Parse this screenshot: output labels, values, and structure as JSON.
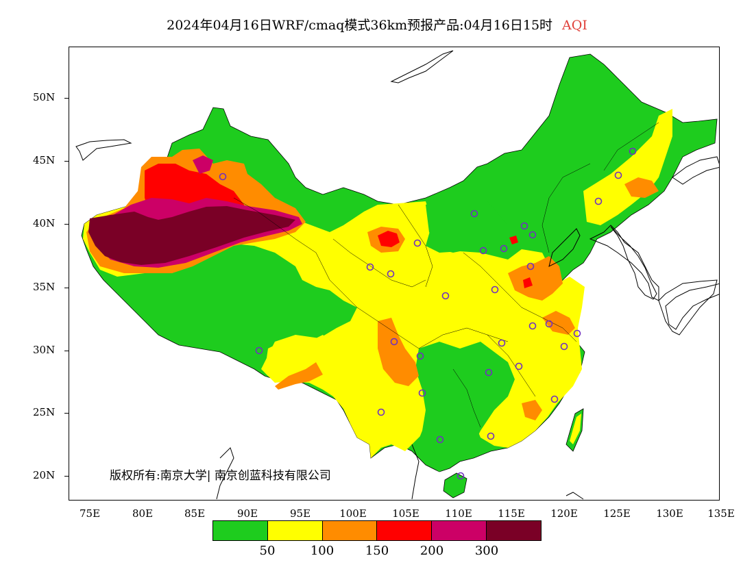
{
  "title": {
    "main": "2024年04月16日WRF/cmaq模式36km预报产品:04月16日15时",
    "variable": "AQI"
  },
  "axes": {
    "lat_labels": [
      "50N",
      "45N",
      "40N",
      "35N",
      "30N",
      "25N",
      "20N"
    ],
    "lon_labels": [
      "75E",
      "80E",
      "85E",
      "90E",
      "95E",
      "100E",
      "105E",
      "110E",
      "115E",
      "120E",
      "125E",
      "130E",
      "135E"
    ]
  },
  "copyright": "版权所有:南京大学| 南京创蓝科技有限公司",
  "legend": {
    "colors": [
      "#1ecc1e",
      "#ffff00",
      "#ff8c00",
      "#ff0000",
      "#cc0066",
      "#7a0026"
    ],
    "labels": [
      "50",
      "100",
      "150",
      "200",
      "300"
    ]
  },
  "colors": {
    "good": "#1ecc1e",
    "moderate": "#ffff00",
    "usg": "#ff8c00",
    "unhealthy": "#ff0000",
    "very_unhealthy": "#cc0066",
    "hazardous": "#7a0026",
    "station_marker": "#7030c0"
  }
}
